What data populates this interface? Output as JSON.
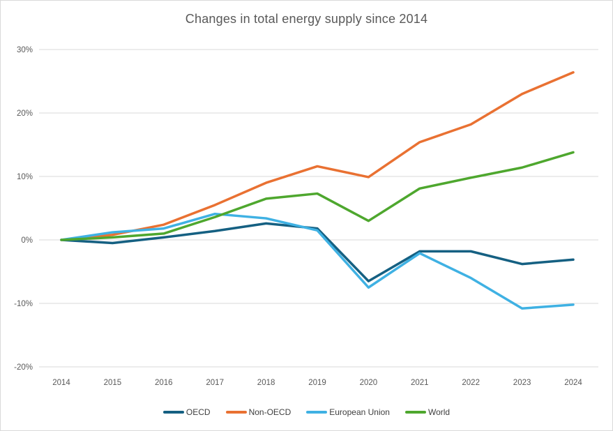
{
  "title": "Changes in total energy supply since 2014",
  "chart_data": {
    "type": "line",
    "title": "Changes in total energy supply since 2014",
    "x": [
      2014,
      2015,
      2016,
      2017,
      2018,
      2019,
      2020,
      2021,
      2022,
      2023,
      2024
    ],
    "series": [
      {
        "name": "OECD",
        "color": "#156082",
        "values": [
          0,
          -0.5,
          0.4,
          1.4,
          2.6,
          1.8,
          -6.5,
          -1.8,
          -1.8,
          -3.8,
          -3.1
        ]
      },
      {
        "name": "Non-OECD",
        "color": "#E97132",
        "values": [
          0,
          0.8,
          2.4,
          5.5,
          9.0,
          11.6,
          9.9,
          15.4,
          18.2,
          23.0,
          26.4
        ]
      },
      {
        "name": "European Union",
        "color": "#3FB1E3",
        "values": [
          0,
          1.2,
          1.8,
          4.1,
          3.4,
          1.5,
          -7.5,
          -2.1,
          -6.0,
          -10.8,
          -10.2
        ]
      },
      {
        "name": "World",
        "color": "#4EA72E",
        "values": [
          0,
          0.4,
          1.0,
          3.6,
          6.5,
          7.3,
          3.0,
          8.1,
          9.8,
          11.4,
          13.8
        ]
      }
    ],
    "xlabel": "",
    "ylabel": "",
    "ylim": [
      -20,
      30
    ],
    "y_ticks": [
      30,
      20,
      10,
      0,
      -10,
      -20
    ],
    "y_tick_labels": [
      "30%",
      "20%",
      "10%",
      "0%",
      "-10%",
      "-20%"
    ],
    "x_tick_labels": [
      "2014",
      "2015",
      "2016",
      "2017",
      "2018",
      "2019",
      "2020",
      "2021",
      "2022",
      "2023",
      "2024"
    ],
    "grid": true,
    "legend_position": "bottom",
    "colors": {
      "gridline": "#D9D9D9",
      "axis_text": "#595959",
      "title_text": "#595959",
      "legend_text": "#404040",
      "background": "#FFFFFF",
      "chart_border": "#D9D9D9"
    }
  }
}
